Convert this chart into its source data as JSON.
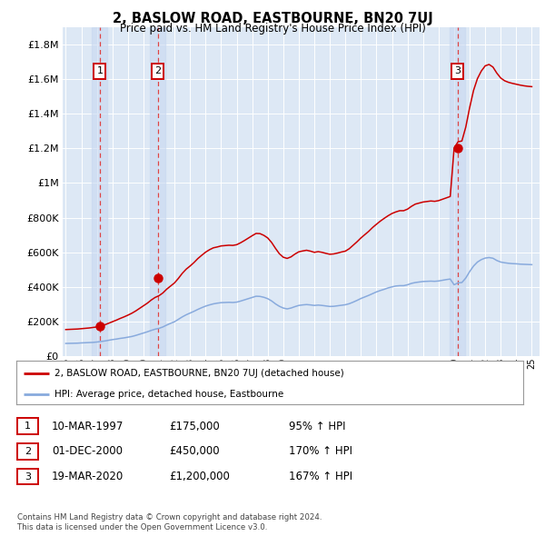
{
  "title": "2, BASLOW ROAD, EASTBOURNE, BN20 7UJ",
  "subtitle": "Price paid vs. HM Land Registry's House Price Index (HPI)",
  "background_color": "#ffffff",
  "plot_bg_color": "#dde8f5",
  "grid_color": "#ffffff",
  "ylim": [
    0,
    1900000
  ],
  "yticks": [
    0,
    200000,
    400000,
    600000,
    800000,
    1000000,
    1200000,
    1400000,
    1600000,
    1800000
  ],
  "ytick_labels": [
    "£0",
    "£200K",
    "£400K",
    "£600K",
    "£800K",
    "£1M",
    "£1.2M",
    "£1.4M",
    "£1.6M",
    "£1.8M"
  ],
  "xlim_start": 1994.8,
  "xlim_end": 2025.5,
  "sale_dates": [
    1997.19,
    2000.92,
    2020.22
  ],
  "sale_prices": [
    175000,
    450000,
    1200000
  ],
  "sale_labels": [
    "1",
    "2",
    "3"
  ],
  "sale_vline_color": "#dd4444",
  "red_line_color": "#cc0000",
  "blue_line_color": "#88aadd",
  "legend_label_red": "2, BASLOW ROAD, EASTBOURNE, BN20 7UJ (detached house)",
  "legend_label_blue": "HPI: Average price, detached house, Eastbourne",
  "table_rows": [
    [
      "1",
      "10-MAR-1997",
      "£175,000",
      "95% ↑ HPI"
    ],
    [
      "2",
      "01-DEC-2000",
      "£450,000",
      "170% ↑ HPI"
    ],
    [
      "3",
      "19-MAR-2020",
      "£1,200,000",
      "167% ↑ HPI"
    ]
  ],
  "footer": "Contains HM Land Registry data © Crown copyright and database right 2024.\nThis data is licensed under the Open Government Licence v3.0.",
  "hpi_years": [
    1995.0,
    1995.25,
    1995.5,
    1995.75,
    1996.0,
    1996.25,
    1996.5,
    1996.75,
    1997.0,
    1997.25,
    1997.5,
    1997.75,
    1998.0,
    1998.25,
    1998.5,
    1998.75,
    1999.0,
    1999.25,
    1999.5,
    1999.75,
    2000.0,
    2000.25,
    2000.5,
    2000.75,
    2001.0,
    2001.25,
    2001.5,
    2001.75,
    2002.0,
    2002.25,
    2002.5,
    2002.75,
    2003.0,
    2003.25,
    2003.5,
    2003.75,
    2004.0,
    2004.25,
    2004.5,
    2004.75,
    2005.0,
    2005.25,
    2005.5,
    2005.75,
    2006.0,
    2006.25,
    2006.5,
    2006.75,
    2007.0,
    2007.25,
    2007.5,
    2007.75,
    2008.0,
    2008.25,
    2008.5,
    2008.75,
    2009.0,
    2009.25,
    2009.5,
    2009.75,
    2010.0,
    2010.25,
    2010.5,
    2010.75,
    2011.0,
    2011.25,
    2011.5,
    2011.75,
    2012.0,
    2012.25,
    2012.5,
    2012.75,
    2013.0,
    2013.25,
    2013.5,
    2013.75,
    2014.0,
    2014.25,
    2014.5,
    2014.75,
    2015.0,
    2015.25,
    2015.5,
    2015.75,
    2016.0,
    2016.25,
    2016.5,
    2016.75,
    2017.0,
    2017.25,
    2017.5,
    2017.75,
    2018.0,
    2018.25,
    2018.5,
    2018.75,
    2019.0,
    2019.25,
    2019.5,
    2019.75,
    2020.0,
    2020.25,
    2020.5,
    2020.75,
    2021.0,
    2021.25,
    2021.5,
    2021.75,
    2022.0,
    2022.25,
    2022.5,
    2022.75,
    2023.0,
    2023.25,
    2023.5,
    2023.75,
    2024.0,
    2024.25,
    2024.5,
    2024.75,
    2025.0
  ],
  "hpi_values": [
    75000,
    75500,
    76000,
    76500,
    78000,
    79000,
    80000,
    81000,
    83000,
    86000,
    89000,
    93000,
    97000,
    100000,
    104000,
    107000,
    111000,
    115000,
    121000,
    128000,
    135000,
    142000,
    150000,
    157000,
    162000,
    170000,
    181000,
    191000,
    200000,
    214000,
    228000,
    240000,
    250000,
    260000,
    271000,
    281000,
    290000,
    297000,
    303000,
    307000,
    310000,
    311000,
    312000,
    311000,
    313000,
    319000,
    326000,
    333000,
    340000,
    347000,
    346000,
    341000,
    333000,
    320000,
    303000,
    289000,
    279000,
    274000,
    279000,
    287000,
    294000,
    297000,
    299000,
    297000,
    294000,
    296000,
    294000,
    291000,
    288000,
    289000,
    292000,
    295000,
    298000,
    304000,
    313000,
    323000,
    334000,
    343000,
    352000,
    362000,
    372000,
    380000,
    387000,
    395000,
    401000,
    406000,
    408000,
    408000,
    413000,
    421000,
    426000,
    429000,
    432000,
    433000,
    434000,
    433000,
    435000,
    439000,
    443000,
    446000,
    413000,
    424000,
    426000,
    452000,
    489000,
    521000,
    544000,
    558000,
    567000,
    570000,
    566000,
    553000,
    544000,
    540000,
    537000,
    535000,
    534000,
    532000,
    531000,
    530000,
    529000
  ],
  "red_line_years": [
    1995.0,
    1995.25,
    1995.5,
    1995.75,
    1996.0,
    1996.25,
    1996.5,
    1996.75,
    1997.0,
    1997.25,
    1997.5,
    1997.75,
    1998.0,
    1998.25,
    1998.5,
    1998.75,
    1999.0,
    1999.25,
    1999.5,
    1999.75,
    2000.0,
    2000.25,
    2000.5,
    2000.75,
    2001.0,
    2001.25,
    2001.5,
    2001.75,
    2002.0,
    2002.25,
    2002.5,
    2002.75,
    2003.0,
    2003.25,
    2003.5,
    2003.75,
    2004.0,
    2004.25,
    2004.5,
    2004.75,
    2005.0,
    2005.25,
    2005.5,
    2005.75,
    2006.0,
    2006.25,
    2006.5,
    2006.75,
    2007.0,
    2007.25,
    2007.5,
    2007.75,
    2008.0,
    2008.25,
    2008.5,
    2008.75,
    2009.0,
    2009.25,
    2009.5,
    2009.75,
    2010.0,
    2010.25,
    2010.5,
    2010.75,
    2011.0,
    2011.25,
    2011.5,
    2011.75,
    2012.0,
    2012.25,
    2012.5,
    2012.75,
    2013.0,
    2013.25,
    2013.5,
    2013.75,
    2014.0,
    2014.25,
    2014.5,
    2014.75,
    2015.0,
    2015.25,
    2015.5,
    2015.75,
    2016.0,
    2016.25,
    2016.5,
    2016.75,
    2017.0,
    2017.25,
    2017.5,
    2017.75,
    2018.0,
    2018.25,
    2018.5,
    2018.75,
    2019.0,
    2019.25,
    2019.5,
    2019.75,
    2020.0,
    2020.25,
    2020.5,
    2020.75,
    2021.0,
    2021.25,
    2021.5,
    2021.75,
    2022.0,
    2022.25,
    2022.5,
    2022.75,
    2023.0,
    2023.25,
    2023.5,
    2023.75,
    2024.0,
    2024.25,
    2024.5,
    2024.75,
    2025.0
  ],
  "red_line_values": [
    155000,
    156000,
    157000,
    158000,
    160000,
    162000,
    164000,
    167000,
    170000,
    175000,
    182000,
    191000,
    200000,
    209000,
    219000,
    228000,
    238000,
    249000,
    262000,
    277000,
    292000,
    307000,
    325000,
    340000,
    350000,
    366000,
    388000,
    406000,
    424000,
    450000,
    479000,
    503000,
    521000,
    541000,
    564000,
    583000,
    601000,
    615000,
    626000,
    631000,
    637000,
    639000,
    641000,
    640000,
    644000,
    655000,
    668000,
    682000,
    696000,
    709000,
    708000,
    698000,
    683000,
    657000,
    623000,
    592000,
    572000,
    565000,
    574000,
    590000,
    603000,
    608000,
    612000,
    607000,
    600000,
    604000,
    600000,
    594000,
    589000,
    591000,
    596000,
    602000,
    607000,
    621000,
    641000,
    661000,
    683000,
    702000,
    721000,
    743000,
    762000,
    780000,
    796000,
    811000,
    824000,
    833000,
    840000,
    840000,
    849000,
    865000,
    878000,
    884000,
    890000,
    893000,
    896000,
    894000,
    898000,
    906000,
    914000,
    922000,
    1200000,
    1237000,
    1242000,
    1322000,
    1434000,
    1533000,
    1601000,
    1645000,
    1675000,
    1683000,
    1668000,
    1633000,
    1605000,
    1589000,
    1580000,
    1574000,
    1569000,
    1564000,
    1560000,
    1557000,
    1555000
  ]
}
